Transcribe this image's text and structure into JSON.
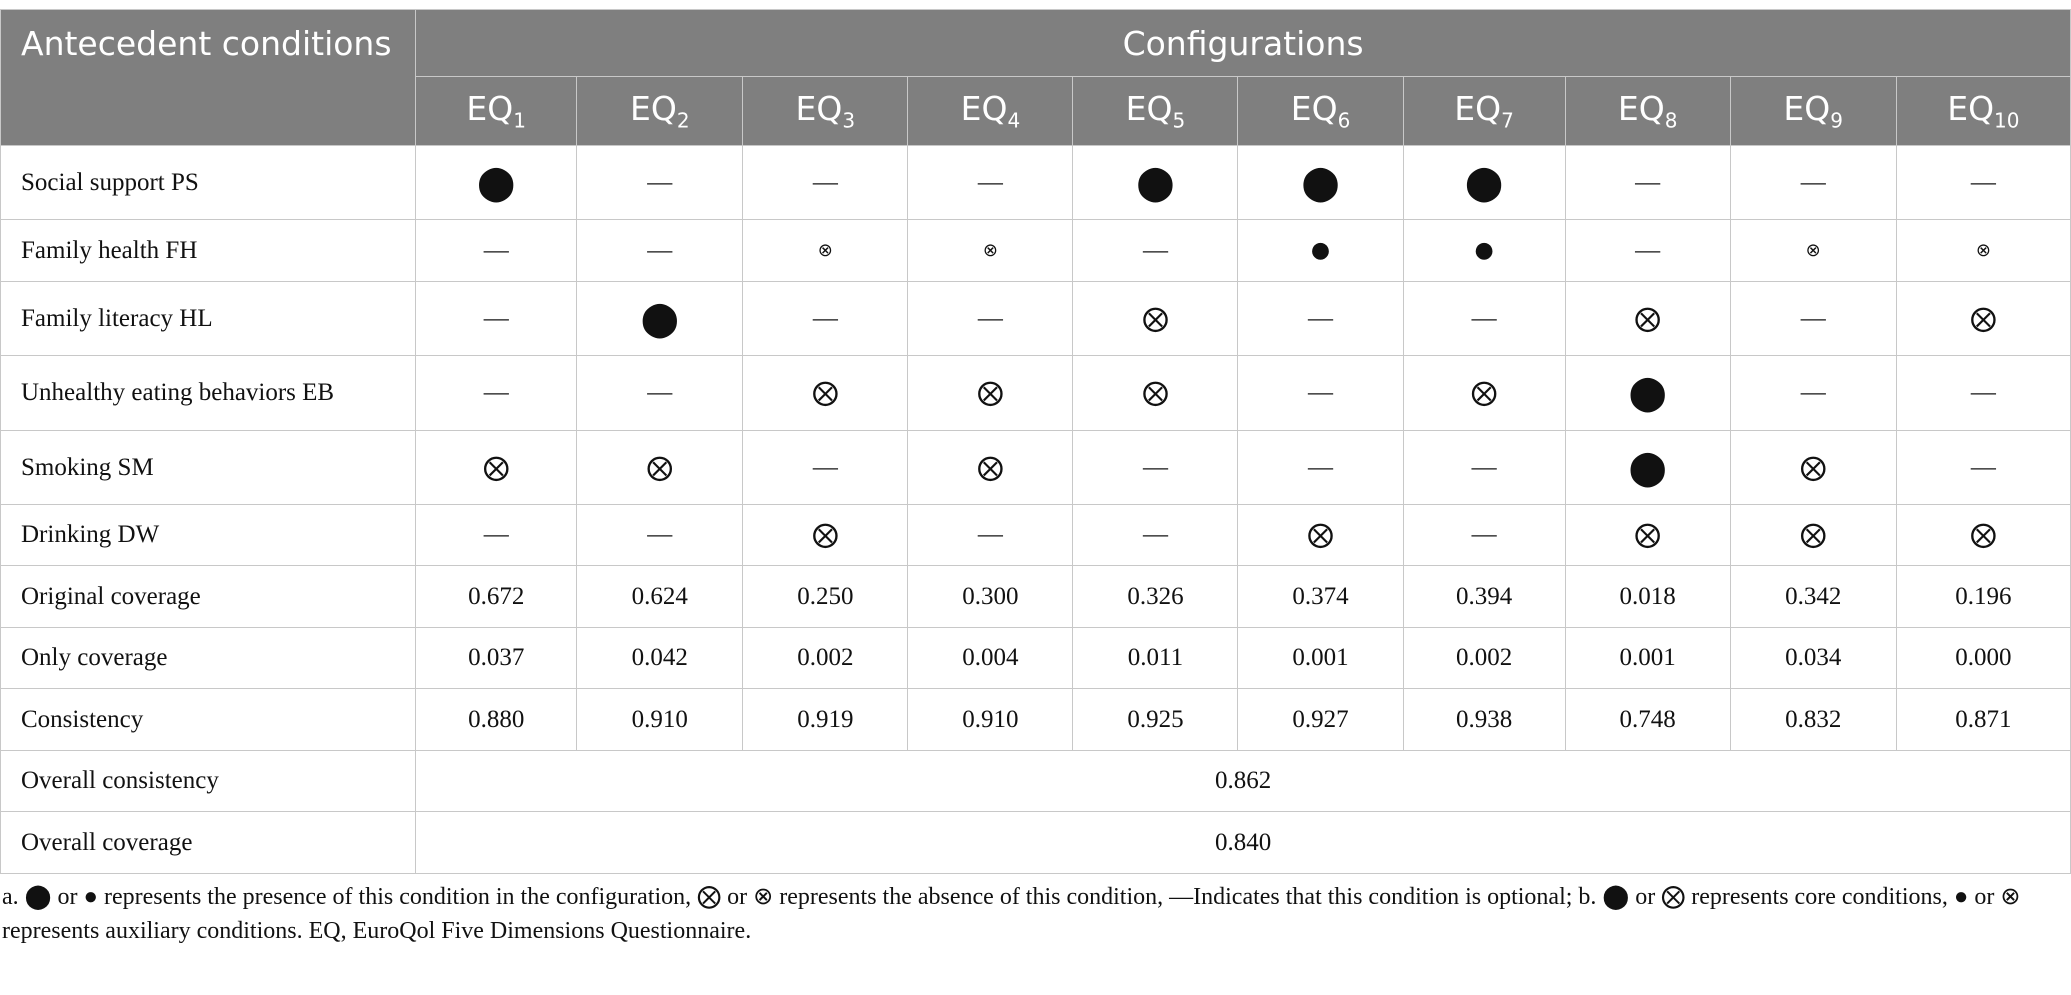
{
  "header": {
    "corner": "Antecedent conditions",
    "group": "Configurations",
    "columns": [
      {
        "base": "EQ",
        "sub": "1"
      },
      {
        "base": "EQ",
        "sub": "2"
      },
      {
        "base": "EQ",
        "sub": "3"
      },
      {
        "base": "EQ",
        "sub": "4"
      },
      {
        "base": "EQ",
        "sub": "5"
      },
      {
        "base": "EQ",
        "sub": "6"
      },
      {
        "base": "EQ",
        "sub": "7"
      },
      {
        "base": "EQ",
        "sub": "8"
      },
      {
        "base": "EQ",
        "sub": "9"
      },
      {
        "base": "EQ",
        "sub": "10"
      }
    ]
  },
  "rows": [
    {
      "label": "Social support PS",
      "cells": [
        "⬤",
        "—",
        "—",
        "—",
        "⬤",
        "⬤",
        "⬤",
        "—",
        "—",
        "—"
      ]
    },
    {
      "label": "Family health FH",
      "cells": [
        "—",
        "—",
        "⊗",
        "⊗",
        "—",
        "●",
        "●",
        "—",
        "⊗",
        "⊗"
      ]
    },
    {
      "label": "Family literacy HL",
      "cells": [
        "—",
        "⬤",
        "—",
        "—",
        "⨂",
        "—",
        "—",
        "⨂",
        "—",
        "⨂"
      ]
    },
    {
      "label": "Unhealthy eating behaviors EB",
      "cells": [
        "—",
        "—",
        "⨂",
        "⨂",
        "⨂",
        "—",
        "⨂",
        "⬤",
        "—",
        "—"
      ]
    },
    {
      "label": "Smoking SM",
      "cells": [
        "⨂",
        "⨂",
        "—",
        "⨂",
        "—",
        "—",
        "—",
        "⬤",
        "⨂",
        "—"
      ]
    },
    {
      "label": "Drinking DW",
      "cells": [
        "—",
        "—",
        "⨂",
        "—",
        "—",
        "⨂",
        "—",
        "⨂",
        "⨂",
        "⨂"
      ]
    },
    {
      "label": "Original coverage",
      "cells": [
        "0.672",
        "0.624",
        "0.250",
        "0.300",
        "0.326",
        "0.374",
        "0.394",
        "0.018",
        "0.342",
        "0.196"
      ]
    },
    {
      "label": "Only coverage",
      "cells": [
        "0.037",
        "0.042",
        "0.002",
        "0.004",
        "0.011",
        "0.001",
        "0.002",
        "0.001",
        "0.034",
        "0.000"
      ]
    },
    {
      "label": "Consistency",
      "cells": [
        "0.880",
        "0.910",
        "0.919",
        "0.910",
        "0.925",
        "0.927",
        "0.938",
        "0.748",
        "0.832",
        "0.871"
      ]
    }
  ],
  "summary": [
    {
      "label": "Overall consistency",
      "value": "0.862"
    },
    {
      "label": "Overall coverage",
      "value": "0.840"
    }
  ],
  "footnote": "a. ⬤ or ● represents the presence of this condition in the configuration, ⨂ or ⊗ represents the absence of this condition, —Indicates that this condition is optional; b. ⬤ or ⨂ represents core conditions, ● or ⊗ represents auxiliary conditions. EQ, EuroQol Five Dimensions Questionnaire."
}
